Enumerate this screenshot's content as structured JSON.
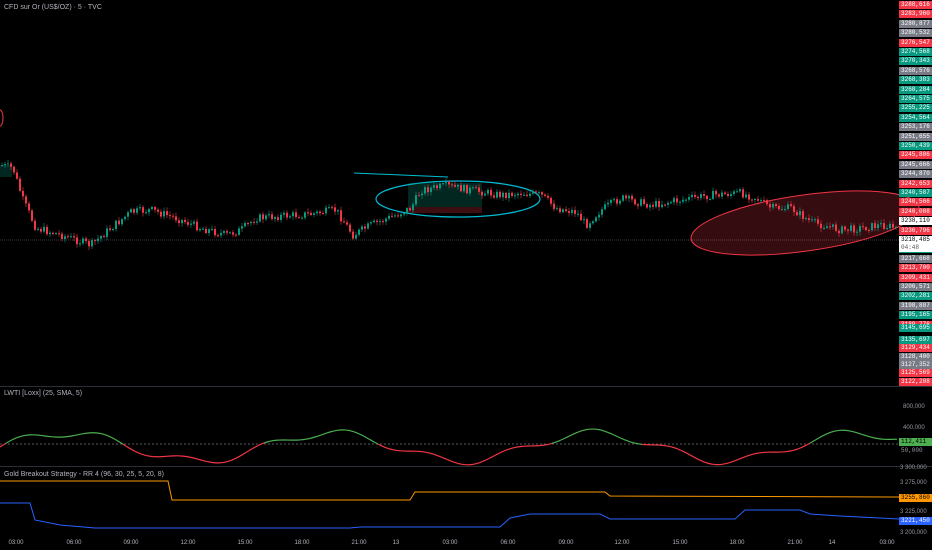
{
  "main_title": "CFD sur Or (US$/OZ) · 5 · TVC",
  "price_scale_tags": [
    {
      "value": "3288,616",
      "color": "#f23645"
    },
    {
      "value": "3283,960",
      "color": "#f23645"
    },
    {
      "value": "3280,877",
      "color": "#787b86"
    },
    {
      "value": "3280,532",
      "color": "#787b86"
    },
    {
      "value": "3276,547",
      "color": "#f23645"
    },
    {
      "value": "3274,568",
      "color": "#089981"
    },
    {
      "value": "3270,343",
      "color": "#089981"
    },
    {
      "value": "3268,576",
      "color": "#787b86"
    },
    {
      "value": "3268,383",
      "color": "#089981"
    },
    {
      "value": "3268,284",
      "color": "#089981"
    },
    {
      "value": "3264,575",
      "color": "#089981"
    },
    {
      "value": "3255,225",
      "color": "#089981"
    },
    {
      "value": "3254,564",
      "color": "#089981"
    },
    {
      "value": "3253,176",
      "color": "#787b86"
    },
    {
      "value": "3251,655",
      "color": "#787b86"
    },
    {
      "value": "3250,439",
      "color": "#089981"
    },
    {
      "value": "3245,806",
      "color": "#f23645"
    },
    {
      "value": "3245,666",
      "color": "#787b86"
    },
    {
      "value": "3244,870",
      "color": "#787b86"
    },
    {
      "value": "3242,653",
      "color": "#f23645"
    },
    {
      "value": "3240,587",
      "color": "#089981"
    },
    {
      "value": "3240,566",
      "color": "#f23645"
    },
    {
      "value": "3240,008",
      "color": "#f23645"
    },
    {
      "value": "3238,110",
      "color": "#ffffff"
    },
    {
      "value": "3236,796",
      "color": "#f23645"
    },
    {
      "value": "3233,677",
      "color": "#089981"
    },
    {
      "value": "3221,289",
      "color": "#089981"
    },
    {
      "value": "3217,668",
      "color": "#787b86"
    },
    {
      "value": "3213,700",
      "color": "#f23645"
    },
    {
      "value": "3209,431",
      "color": "#f23645"
    },
    {
      "value": "3206,571",
      "color": "#787b86"
    },
    {
      "value": "3202,281",
      "color": "#089981"
    },
    {
      "value": "3198,807",
      "color": "#787b86"
    },
    {
      "value": "3195,165",
      "color": "#089981"
    },
    {
      "value": "3189,776",
      "color": "#f23645"
    }
  ],
  "current_price": {
    "value": "3218,485",
    "countdown": "04:48"
  },
  "lower_scale_tags": [
    {
      "value": "3145,695",
      "color": "#089981"
    },
    {
      "value": "3135,697",
      "color": "#089981"
    },
    {
      "value": "3129,434",
      "color": "#f23645"
    },
    {
      "value": "3128,400",
      "color": "#787b86"
    },
    {
      "value": "3127,352",
      "color": "#787b86"
    },
    {
      "value": "3125,569",
      "color": "#f23645"
    },
    {
      "value": "3122,208",
      "color": "#f23645"
    }
  ],
  "indicator1": {
    "title": "LWTI [Loxx] (25, SMA, 5)",
    "axis_top": "800,000",
    "axis_mid": "400,000",
    "tag_value": "112,411",
    "tag_base": "50,000"
  },
  "indicator2": {
    "title": "Gold Breakout Strategy - RR 4 (96, 30, 25, 5, 20, 8)",
    "axis_top": "3 300,000",
    "axis_mid": "3 275,000",
    "axis_low": "3 225,000",
    "axis_bottom": "3 200,000",
    "tag_upper": "3255,860",
    "tag_lower": "3221,450"
  },
  "time_axis": [
    "03:00",
    "06:00",
    "09:00",
    "12:00",
    "15:00",
    "18:00",
    "21:00",
    "13",
    "03:00",
    "06:00",
    "09:00",
    "12:00",
    "15:00",
    "18:00",
    "21:00",
    "14",
    "03:00"
  ],
  "colors": {
    "up": "#089981",
    "down": "#f23645",
    "orange": "#ff9800",
    "blue": "#2962ff",
    "green": "#4caf50",
    "cyan": "#00bcd4"
  }
}
